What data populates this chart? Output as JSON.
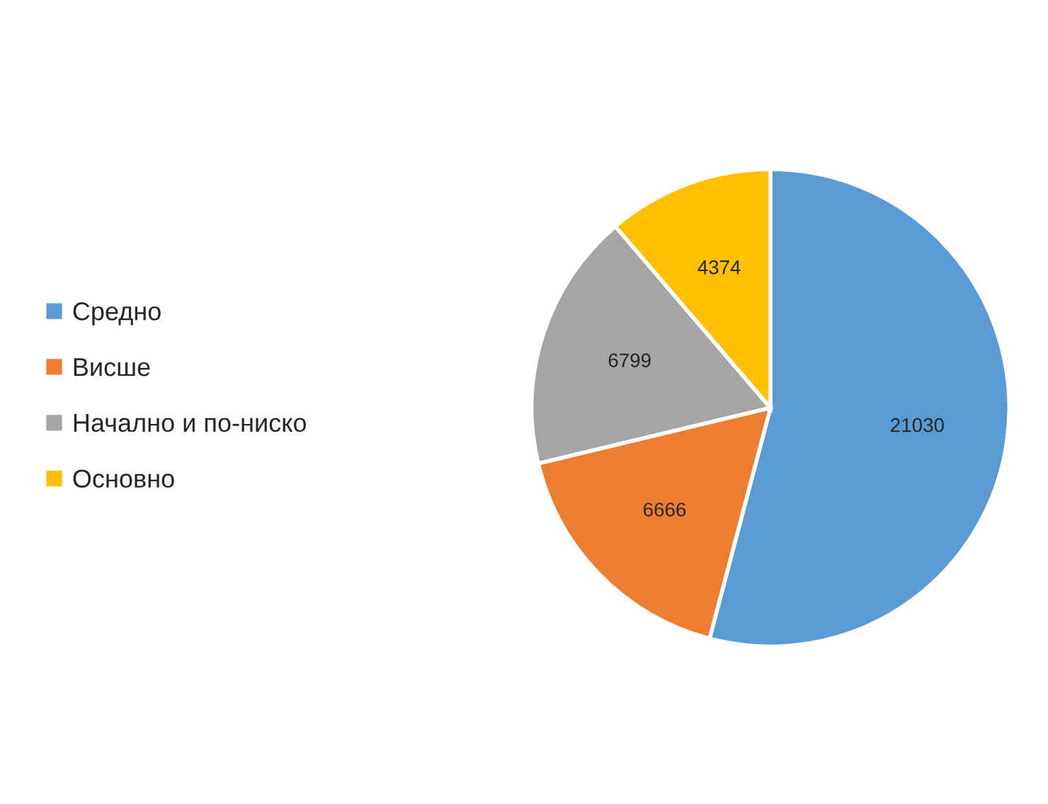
{
  "chart_data": {
    "type": "pie",
    "categories": [
      "Средно",
      "Висше",
      "Начално и по-ниско",
      "Основно"
    ],
    "values": [
      21030,
      6666,
      6799,
      4374
    ],
    "colors": [
      "#5b9bd5",
      "#ed7d31",
      "#a5a5a5",
      "#ffc000"
    ],
    "data_labels": true,
    "legend": "left",
    "marker": "square"
  }
}
